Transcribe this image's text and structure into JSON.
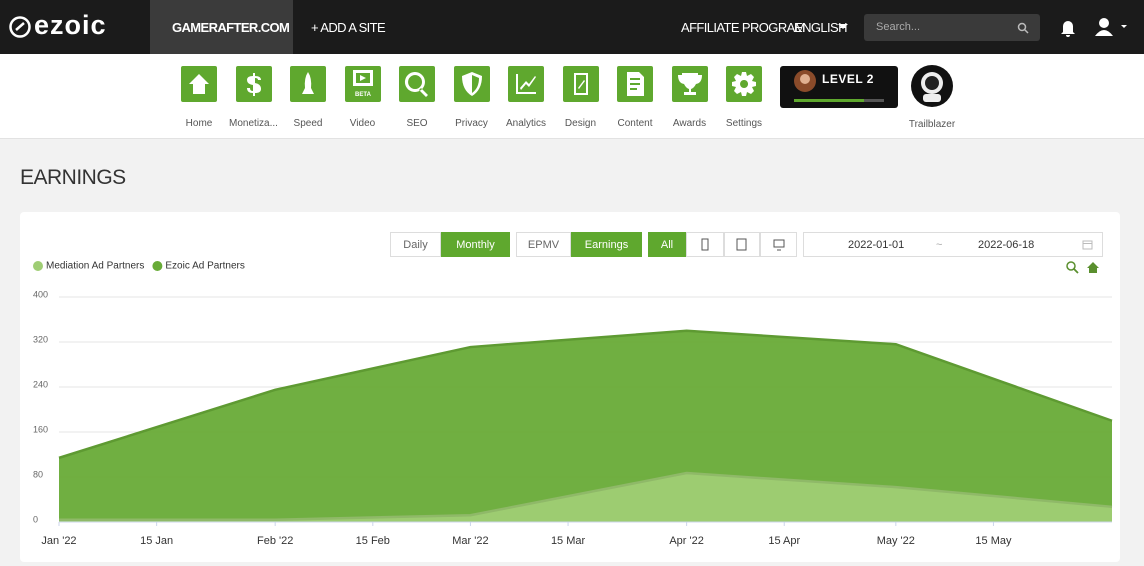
{
  "header": {
    "logo": "ezoic",
    "site": "GAMERAFTER.COM",
    "add_site": "+ ADD A SITE",
    "affiliate": "AFFILIATE PROGRAM",
    "language": "ENGLISH",
    "search_placeholder": "Search..."
  },
  "toolbar": {
    "items": [
      "Home",
      "Monetiza...",
      "Speed",
      "Video",
      "SEO",
      "Privacy",
      "Analytics",
      "Design",
      "Content",
      "Awards",
      "Settings"
    ],
    "video_badge": "BETA",
    "level": "LEVEL 2",
    "trailblazer": "Trailblazer"
  },
  "page_title": "EARNINGS",
  "controls": {
    "period": [
      "Daily",
      "Monthly"
    ],
    "metric": [
      "EPMV",
      "Earnings"
    ],
    "device_all": "All",
    "date_start": "2022-01-01",
    "date_separator": "~",
    "date_end": "2022-06-18"
  },
  "chart_data": {
    "type": "area",
    "x": [
      "2022-01-01",
      "2022-02-01",
      "2022-03-01",
      "2022-04-01",
      "2022-05-01",
      "2022-06-01"
    ],
    "series": [
      {
        "name": "Mediation Ad Partners",
        "color": "#9fcd74",
        "values": [
          4,
          4,
          12,
          87,
          62,
          27
        ]
      },
      {
        "name": "Ezoic Ad Partners",
        "color": "#68ab37",
        "values": [
          114,
          235,
          311,
          340,
          316,
          180
        ]
      }
    ],
    "xlim": [
      "2022-01-01",
      "2022-06-01"
    ],
    "xticks": [
      {
        "value": "2022-01-01",
        "label": "Jan '22"
      },
      {
        "value": "2022-01-15",
        "label": "15 Jan"
      },
      {
        "value": "2022-02-01",
        "label": "Feb '22"
      },
      {
        "value": "2022-02-15",
        "label": "15 Feb"
      },
      {
        "value": "2022-03-01",
        "label": "Mar '22"
      },
      {
        "value": "2022-03-15",
        "label": "15 Mar"
      },
      {
        "value": "2022-04-01",
        "label": "Apr '22"
      },
      {
        "value": "2022-04-15",
        "label": "15 Apr"
      },
      {
        "value": "2022-05-01",
        "label": "May '22"
      },
      {
        "value": "2022-05-15",
        "label": "15 May"
      }
    ],
    "ylim": [
      0,
      400
    ],
    "yticks": [
      0,
      80,
      160,
      240,
      320,
      400
    ],
    "grid": true
  }
}
